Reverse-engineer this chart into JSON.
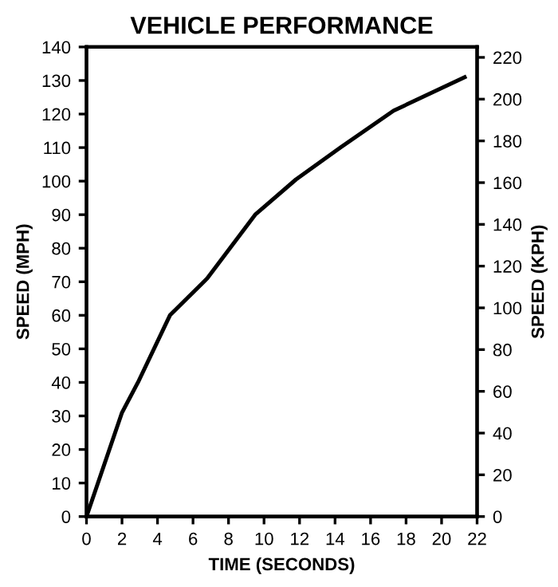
{
  "chart_data": {
    "type": "line",
    "title": "VEHICLE PERFORMANCE",
    "xlabel": "TIME (SECONDS)",
    "ylabel": "SPEED (MPH)",
    "y2label": "SPEED (KPH)",
    "series": [
      {
        "color": "#000000",
        "x": [
          0,
          2.0,
          2.9,
          4.7,
          6.8,
          9.5,
          11.8,
          14.3,
          17.3,
          21.3
        ],
        "values": [
          0,
          31,
          40,
          60,
          71,
          90,
          100.5,
          110,
          121,
          131
        ]
      }
    ],
    "xlim": [
      0,
      22
    ],
    "xticks": [
      0,
      2,
      4,
      6,
      8,
      10,
      12,
      14,
      16,
      18,
      20,
      22
    ],
    "ylim": [
      0,
      140
    ],
    "yticks": [
      0,
      10,
      20,
      30,
      40,
      50,
      60,
      70,
      80,
      90,
      100,
      110,
      120,
      130,
      140
    ],
    "y2lim": [
      0,
      225
    ],
    "y2ticks": [
      0,
      20,
      40,
      60,
      80,
      100,
      120,
      140,
      160,
      180,
      200,
      220
    ],
    "grid": false,
    "marker": "none",
    "line_style": "solid"
  }
}
